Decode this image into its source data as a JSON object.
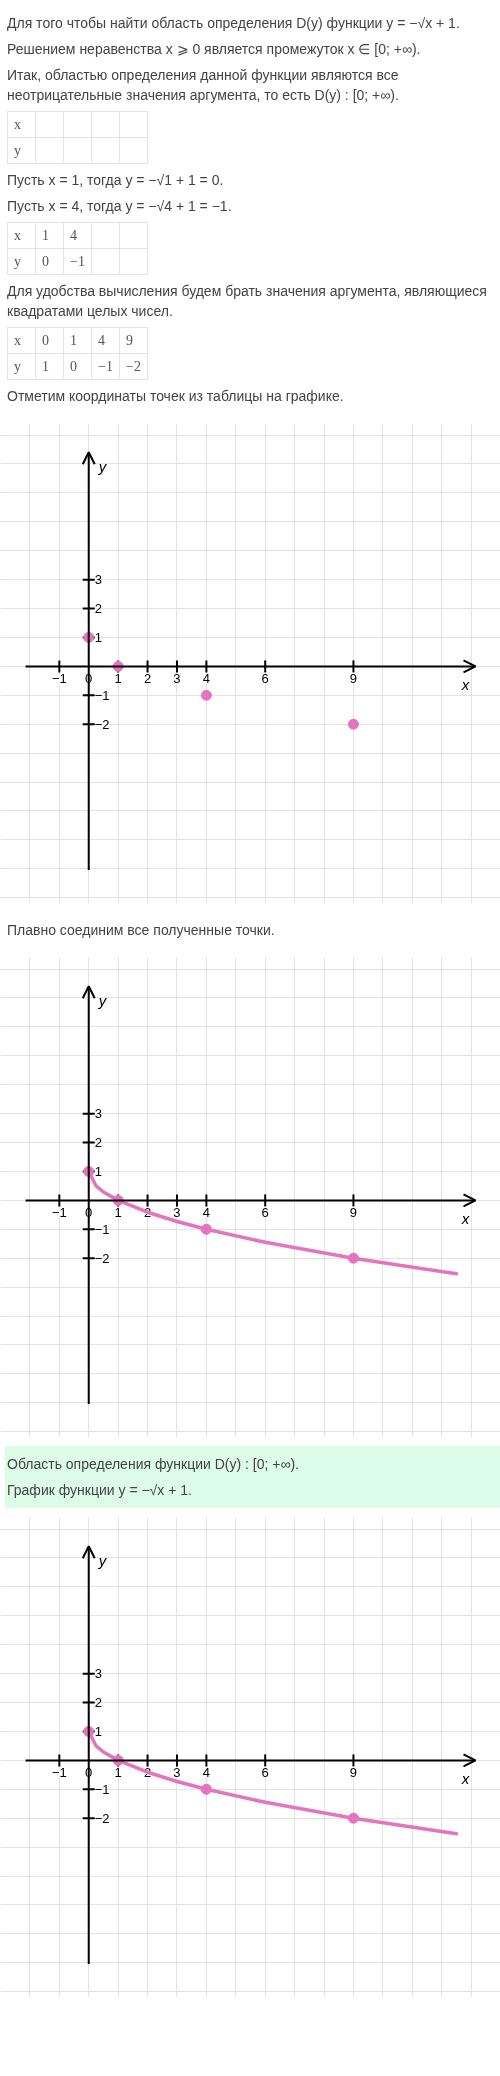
{
  "chart_data": [
    {
      "type": "scatter",
      "annotations": [
        "Для того чтобы найти область определения D(y) функции y = −√x + 1.",
        "Решением неравенства x ⩾ 0 является промежуток x ∈ [0; +∞).",
        "Итак, областью определения данной функции являются все неотрицательные значения аргумента, то есть D(y) : [0; +∞).",
        "x\t\t\t\t",
        "y\t\t\t\t",
        "Пусть x = 1, тогда y = −√1 + 1 = 0.",
        "Пусть x = 4, тогда y = −√4 + 1 = −1.",
        "x\t1\t4\t\t",
        "y\t0\t−1\t\t",
        "Для удобства вычисления будем брать значения аргумента, являющиеся квадратами целых чисел.",
        "x\t0\t1\t4\t9",
        "y\t1\t0\t−1\t−2",
        "Отметим координаты точек из таблицы на графике."
      ],
      "xlabel": "x",
      "ylabel": "y",
      "x": [
        0,
        1,
        4,
        9
      ],
      "values": [
        1,
        0,
        -1,
        -2
      ],
      "color": "#e374bd",
      "marker": "circle",
      "xlim": [
        -3,
        14
      ],
      "ylim": [
        -8.2,
        8.4
      ],
      "xticks": [
        {
          "value": -3,
          "label": null
        },
        {
          "value": -2,
          "label": null
        },
        -1,
        0,
        1,
        2,
        3,
        4,
        {
          "value": 5,
          "label": null
        },
        6,
        {
          "value": 7,
          "label": null
        },
        {
          "value": 8,
          "label": null
        },
        9,
        {
          "value": 10,
          "label": null
        },
        {
          "value": 11,
          "label": null
        },
        {
          "value": 12,
          "label": null
        },
        {
          "value": 13,
          "label": null
        },
        {
          "value": 14,
          "label": null
        }
      ],
      "yticks": [
        {
          "value": -8,
          "label": null
        },
        {
          "value": -7,
          "label": null
        },
        {
          "value": -6,
          "label": null
        },
        {
          "value": -5,
          "label": null
        },
        {
          "value": -4,
          "label": null
        },
        {
          "value": -3,
          "label": null
        },
        -2,
        -1,
        {
          "value": 0,
          "label": null
        },
        1,
        2,
        3,
        {
          "value": 4,
          "label": null
        },
        {
          "value": 5,
          "label": null
        },
        {
          "value": 6,
          "label": null
        },
        {
          "value": 7,
          "label": null
        },
        {
          "value": 8,
          "label": null
        }
      ],
      "grid": true
    },
    {
      "type": "line",
      "annotations": [
        "Плавно соединим все полученные точки."
      ],
      "xlabel": "x",
      "ylabel": "y",
      "series": [
        {
          "type": "line",
          "color": "#e374bd",
          "x": [
            0,
            0.25,
            0.5,
            1,
            2,
            3,
            4,
            6,
            9,
            12.5
          ],
          "values": [
            1,
            0.5,
            0.29,
            0,
            -0.41,
            -0.73,
            -1,
            -1.45,
            -2,
            -2.54
          ]
        },
        {
          "type": "scatter",
          "color": "#e374bd",
          "marker": "circle",
          "x": [
            0,
            1,
            4,
            9
          ],
          "values": [
            1,
            0,
            -1,
            -2
          ]
        }
      ],
      "xlim": [
        -3,
        14
      ],
      "ylim": [
        -8.2,
        8.4
      ],
      "xticks": [
        {
          "value": -3,
          "label": null
        },
        {
          "value": -2,
          "label": null
        },
        -1,
        0,
        1,
        2,
        3,
        4,
        {
          "value": 5,
          "label": null
        },
        6,
        {
          "value": 7,
          "label": null
        },
        {
          "value": 8,
          "label": null
        },
        9,
        {
          "value": 10,
          "label": null
        },
        {
          "value": 11,
          "label": null
        },
        {
          "value": 12,
          "label": null
        },
        {
          "value": 13,
          "label": null
        },
        {
          "value": 14,
          "label": null
        }
      ],
      "yticks": [
        {
          "value": -8,
          "label": null
        },
        {
          "value": -7,
          "label": null
        },
        {
          "value": -6,
          "label": null
        },
        {
          "value": -5,
          "label": null
        },
        {
          "value": -4,
          "label": null
        },
        {
          "value": -3,
          "label": null
        },
        -2,
        -1,
        {
          "value": 0,
          "label": null
        },
        1,
        2,
        3,
        {
          "value": 4,
          "label": null
        },
        {
          "value": 5,
          "label": null
        },
        {
          "value": 6,
          "label": null
        },
        {
          "value": 7,
          "label": null
        },
        {
          "value": 8,
          "label": null
        }
      ],
      "grid": true
    },
    {
      "type": "line",
      "annotations": [
        "Область определения функции D(y) : [0; +∞).",
        "График функции y = −√x + 1."
      ],
      "xlabel": "x",
      "ylabel": "y",
      "series": [
        {
          "type": "line",
          "color": "#e374bd",
          "x": [
            0,
            0.25,
            0.5,
            1,
            2,
            3,
            4,
            6,
            9,
            12.5
          ],
          "values": [
            1,
            0.5,
            0.29,
            0,
            -0.41,
            -0.73,
            -1,
            -1.45,
            -2,
            -2.54
          ]
        },
        {
          "type": "scatter",
          "color": "#e374bd",
          "marker": "circle",
          "x": [
            0,
            1,
            4,
            9
          ],
          "values": [
            1,
            0,
            -1,
            -2
          ]
        }
      ],
      "xlim": [
        -3,
        14
      ],
      "ylim": [
        -8.2,
        8.4
      ],
      "xticks": [
        {
          "value": -3,
          "label": null
        },
        {
          "value": -2,
          "label": null
        },
        -1,
        0,
        1,
        2,
        3,
        4,
        {
          "value": 5,
          "label": null
        },
        6,
        {
          "value": 7,
          "label": null
        },
        {
          "value": 8,
          "label": null
        },
        9,
        {
          "value": 10,
          "label": null
        },
        {
          "value": 11,
          "label": null
        },
        {
          "value": 12,
          "label": null
        },
        {
          "value": 13,
          "label": null
        },
        {
          "value": 14,
          "label": null
        }
      ],
      "yticks": [
        {
          "value": -8,
          "label": null
        },
        {
          "value": -7,
          "label": null
        },
        {
          "value": -6,
          "label": null
        },
        {
          "value": -5,
          "label": null
        },
        {
          "value": -4,
          "label": null
        },
        {
          "value": -3,
          "label": null
        },
        -2,
        -1,
        {
          "value": 0,
          "label": null
        },
        1,
        2,
        3,
        {
          "value": 4,
          "label": null
        },
        {
          "value": 5,
          "label": null
        },
        {
          "value": 6,
          "label": null
        },
        {
          "value": 7,
          "label": null
        },
        {
          "value": 8,
          "label": null
        }
      ],
      "grid": true
    }
  ]
}
